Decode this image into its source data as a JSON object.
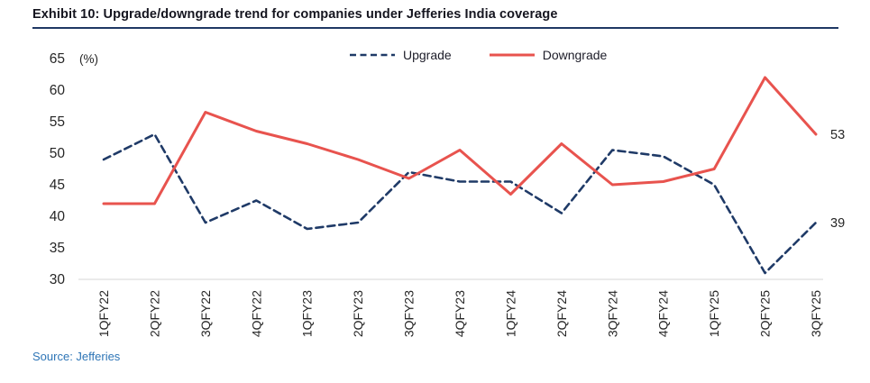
{
  "chart_data": {
    "type": "line",
    "title": "Exhibit 10: Upgrade/downgrade trend for companies under Jefferies India coverage",
    "unit_label": "(%)",
    "xlabel": "",
    "ylabel": "(%)",
    "categories": [
      "1QFY22",
      "2QFY22",
      "3QFY22",
      "4QFY22",
      "1QFY23",
      "2QFY23",
      "3QFY23",
      "4QFY23",
      "1QFY24",
      "2QFY24",
      "3QFY24",
      "4QFY24",
      "1QFY25",
      "2QFY25",
      "3QFY25"
    ],
    "series": [
      {
        "name": "Upgrade",
        "color": "#1f3a67",
        "line_style": "dashed",
        "values": [
          49,
          53,
          39,
          42.5,
          38,
          39,
          47,
          45.5,
          45.5,
          40.5,
          50.5,
          49.5,
          45,
          31,
          39
        ],
        "end_label": "39"
      },
      {
        "name": "Downgrade",
        "color": "#e8534e",
        "line_style": "solid",
        "values": [
          42,
          42,
          56.5,
          53.5,
          51.5,
          49,
          46,
          50.5,
          43.5,
          51.5,
          45,
          45.5,
          47.5,
          62,
          53
        ],
        "end_label": "53"
      }
    ],
    "ylim": [
      30,
      65
    ],
    "yticks": [
      65,
      60,
      55,
      50,
      45,
      40,
      35,
      30
    ],
    "grid": false,
    "legend_position": "top-center"
  },
  "footer": {
    "source": "Source: Jefferies"
  }
}
